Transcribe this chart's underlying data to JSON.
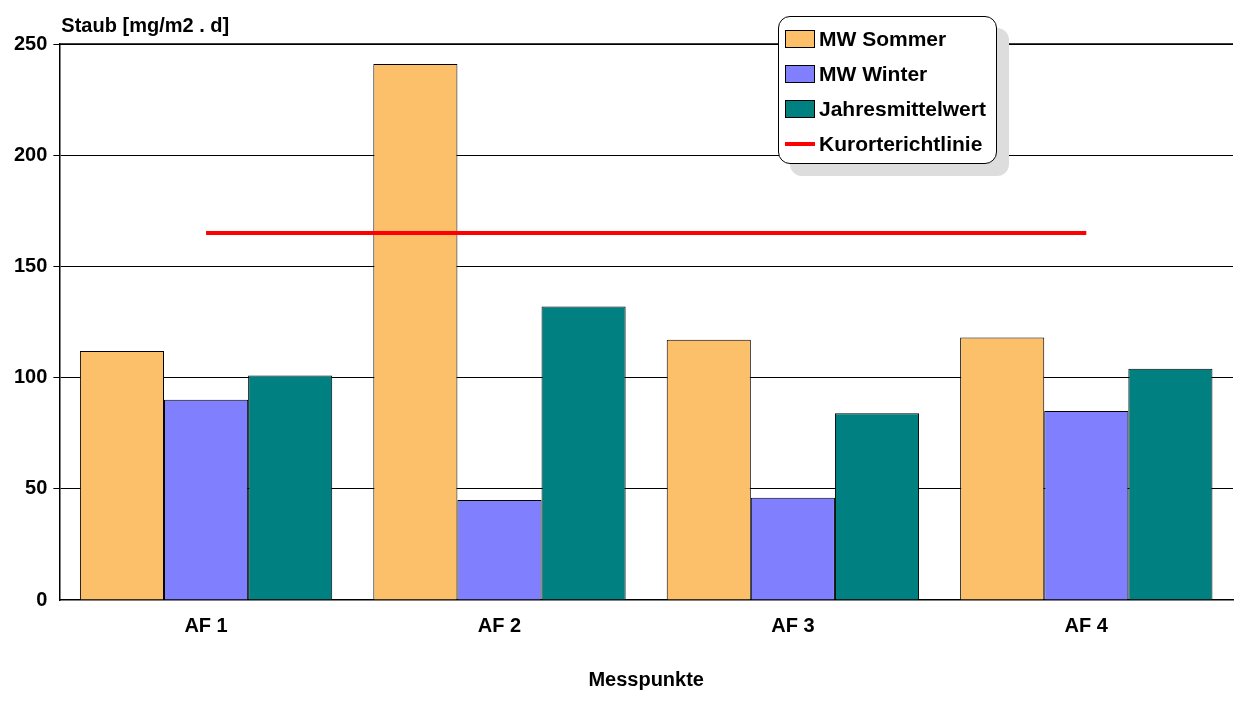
{
  "chart_data": {
    "type": "bar",
    "ylabel": "Staub [mg/m2 . d]",
    "xlabel": "Messpunkte",
    "categories": [
      "AF 1",
      "AF 2",
      "AF 3",
      "AF 4"
    ],
    "series": [
      {
        "name": "MW Sommer",
        "color": "#fdc06a",
        "values": [
          112,
          241,
          117,
          118
        ]
      },
      {
        "name": "MW Winter",
        "color": "#8080ff",
        "values": [
          90,
          45,
          46,
          85
        ]
      },
      {
        "name": "Jahresmittelwert",
        "color": "#008080",
        "values": [
          101,
          132,
          84,
          104
        ]
      },
      {
        "name": "Kurorterichtlinie",
        "type": "line",
        "color": "#ff0000",
        "values": [
          165,
          165,
          165,
          165
        ]
      }
    ],
    "ylim": [
      0,
      250
    ],
    "yticks": [
      0,
      50,
      100,
      150,
      200,
      250
    ],
    "grid": "y",
    "legend": "top right",
    "marker": "none"
  }
}
